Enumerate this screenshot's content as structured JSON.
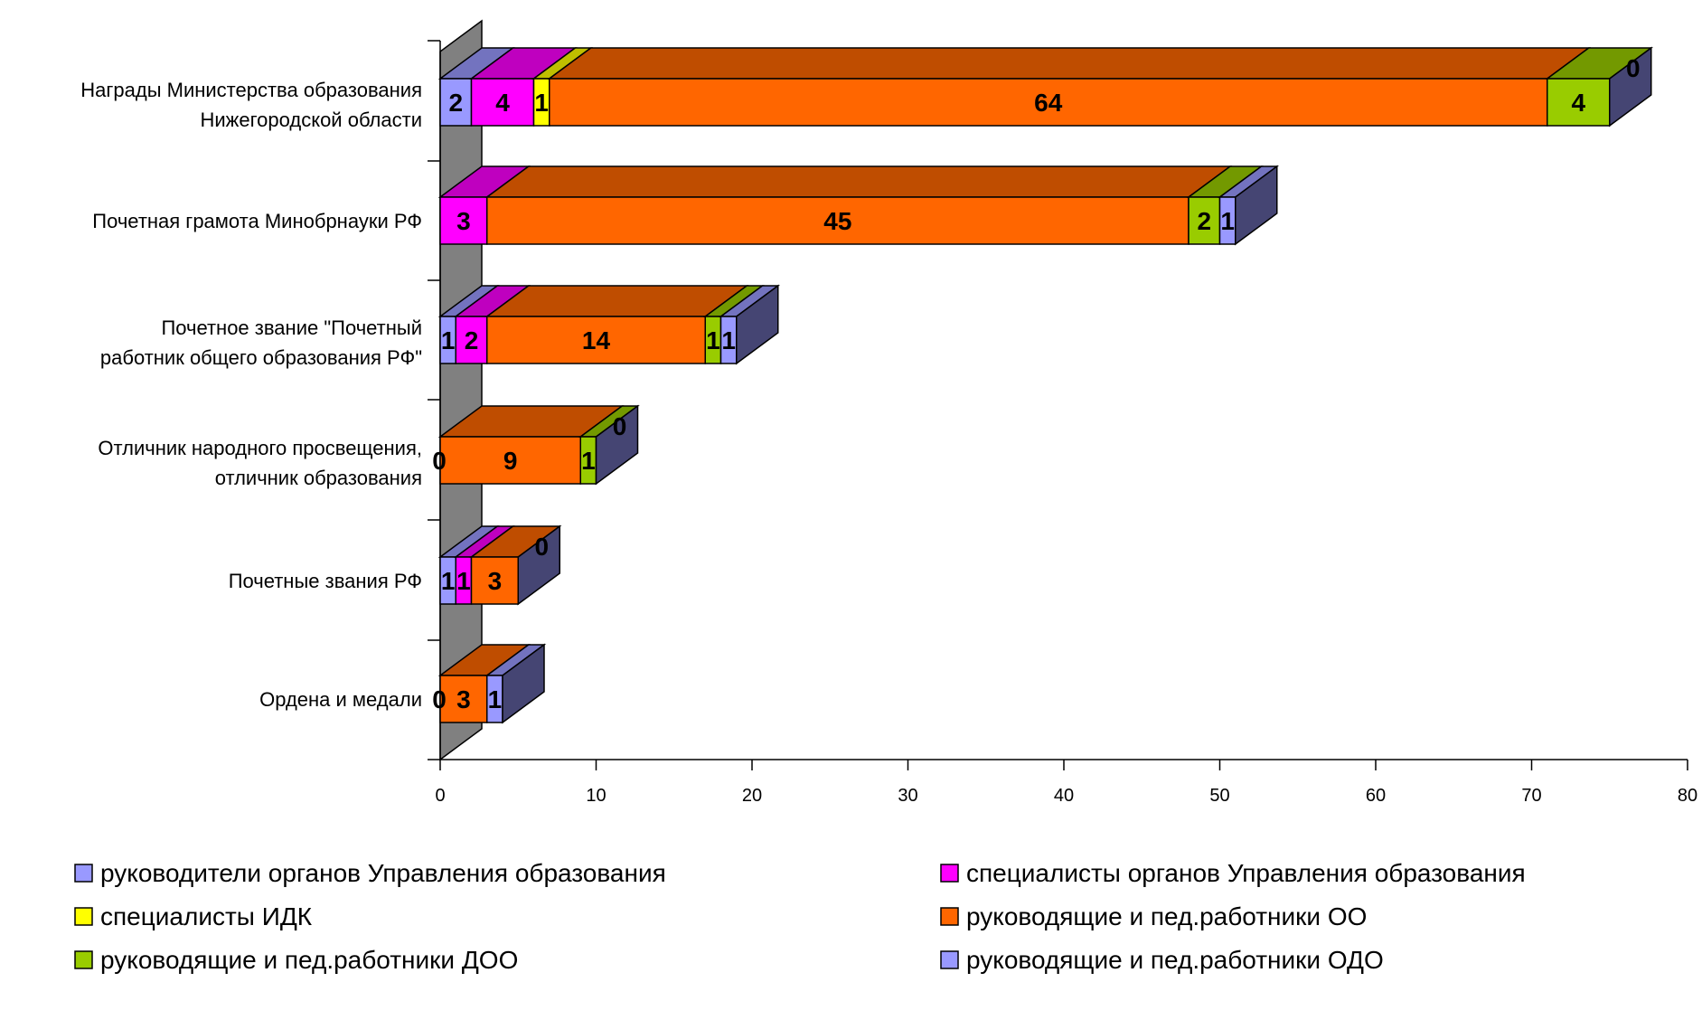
{
  "chart_data": {
    "type": "bar",
    "orientation": "horizontal",
    "stacked": true,
    "three_d": true,
    "title": "",
    "xlabel": "",
    "ylabel": "",
    "xlim": [
      0,
      80
    ],
    "x_ticks": [
      0,
      10,
      20,
      30,
      40,
      50,
      60,
      70,
      80
    ],
    "grid": false,
    "legend_position": "bottom",
    "categories": [
      [
        "Награды Министерства образования",
        "Нижегородской области"
      ],
      [
        "Почетная грамота Минобрнауки РФ"
      ],
      [
        "Почетное звание \"Почетный",
        "работник общего образования РФ\""
      ],
      [
        "Отличник народного просвещения,",
        "отличник образования"
      ],
      [
        "Почетные звания РФ"
      ],
      [
        "Ордена и медали"
      ]
    ],
    "series": [
      {
        "name": "руководители органов Управления образования",
        "color": "#9999ff",
        "values": [
          2,
          null,
          1,
          null,
          1,
          null
        ]
      },
      {
        "name": "специалисты органов Управления образования",
        "color": "#ff00ff",
        "values": [
          4,
          3,
          2,
          null,
          1,
          null
        ]
      },
      {
        "name": "специалисты ИДК",
        "color": "#ffff00",
        "values": [
          1,
          null,
          null,
          0,
          null,
          0
        ]
      },
      {
        "name": "руководящие и пед.работники ОО",
        "color": "#ff6600",
        "values": [
          64,
          45,
          14,
          9,
          3,
          3
        ]
      },
      {
        "name": "руководящие и пед.работники ДОО",
        "color": "#99cc00",
        "values": [
          4,
          2,
          1,
          1,
          null,
          null
        ]
      },
      {
        "name": "руководящие и пед.работники ОДО",
        "color": "#9999ff",
        "values": [
          0,
          1,
          1,
          0,
          0,
          1
        ]
      }
    ]
  }
}
